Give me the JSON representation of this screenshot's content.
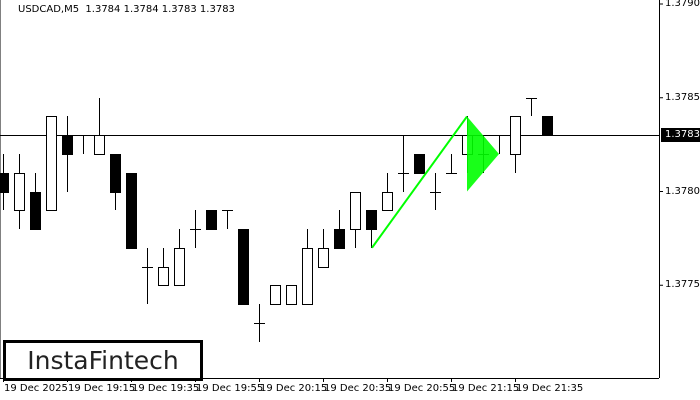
{
  "header": {
    "symbol_info": "USDCAD,M5  1.3784 1.3784 1.3783 1.3783"
  },
  "logo": "InstaFintech",
  "colors": {
    "bull_body": "#ffffff",
    "bear_body": "#000000",
    "pattern": "#00ff00",
    "current_price_bg": "#000000"
  },
  "chart_data": {
    "type": "candlestick",
    "symbol": "USDCAD",
    "timeframe": "M5",
    "ylim": [
      1.377,
      1.379
    ],
    "y_ticks": [
      "1.3790",
      "1.3785",
      "1.3780",
      "1.3775"
    ],
    "current_price": "1.3783",
    "x_ticks": [
      {
        "candle": 0,
        "label": "19 Dec 2025"
      },
      {
        "candle": 4,
        "label": "19 Dec 19:15"
      },
      {
        "candle": 8,
        "label": "19 Dec 19:35"
      },
      {
        "candle": 12,
        "label": "19 Dec 19:55"
      },
      {
        "candle": 16,
        "label": "19 Dec 20:15"
      },
      {
        "candle": 20,
        "label": "19 Dec 20:35"
      },
      {
        "candle": 24,
        "label": "19 Dec 20:55"
      },
      {
        "candle": 28,
        "label": "19 Dec 21:15"
      },
      {
        "candle": 32,
        "label": "19 Dec 21:35"
      }
    ],
    "candles": [
      [
        1.3781,
        1.3782,
        1.3779,
        1.378
      ],
      [
        1.3779,
        1.3782,
        1.3778,
        1.3781
      ],
      [
        1.378,
        1.3781,
        1.3778,
        1.3778
      ],
      [
        1.3779,
        1.3784,
        1.3779,
        1.3784
      ],
      [
        1.3783,
        1.3784,
        1.378,
        1.3782
      ],
      [
        1.3783,
        1.3783,
        1.3782,
        1.3783
      ],
      [
        1.3782,
        1.3785,
        1.3782,
        1.3783
      ],
      [
        1.3782,
        1.3782,
        1.3779,
        1.378
      ],
      [
        1.3781,
        1.3781,
        1.3777,
        1.3777
      ],
      [
        1.3776,
        1.3777,
        1.3774,
        1.3776
      ],
      [
        1.3775,
        1.3777,
        1.3775,
        1.3776
      ],
      [
        1.3775,
        1.3778,
        1.3775,
        1.3777
      ],
      [
        1.3778,
        1.3779,
        1.3777,
        1.3778
      ],
      [
        1.3779,
        1.3779,
        1.3778,
        1.3778
      ],
      [
        1.3779,
        1.3779,
        1.3778,
        1.3779
      ],
      [
        1.3778,
        1.3778,
        1.3774,
        1.3774
      ],
      [
        1.3773,
        1.3774,
        1.3772,
        1.3773
      ],
      [
        1.3774,
        1.3775,
        1.3774,
        1.3775
      ],
      [
        1.3774,
        1.3775,
        1.3774,
        1.3775
      ],
      [
        1.3774,
        1.3778,
        1.3774,
        1.3777
      ],
      [
        1.3776,
        1.3778,
        1.3776,
        1.3777
      ],
      [
        1.3778,
        1.3779,
        1.3777,
        1.3777
      ],
      [
        1.3778,
        1.378,
        1.3777,
        1.378
      ],
      [
        1.3779,
        1.3779,
        1.3777,
        1.3778
      ],
      [
        1.3779,
        1.3781,
        1.3779,
        1.378
      ],
      [
        1.3781,
        1.3783,
        1.378,
        1.3781
      ],
      [
        1.3782,
        1.3782,
        1.3781,
        1.3781
      ],
      [
        1.378,
        1.3781,
        1.3779,
        1.378
      ],
      [
        1.3781,
        1.3782,
        1.3781,
        1.3781
      ],
      [
        1.3782,
        1.3784,
        1.3781,
        1.3783
      ],
      [
        1.3782,
        1.3783,
        1.3781,
        1.3782
      ],
      [
        1.3783,
        1.3783,
        1.3782,
        1.3783
      ],
      [
        1.3782,
        1.3784,
        1.3781,
        1.3784
      ],
      [
        1.3785,
        1.3785,
        1.3784,
        1.3785
      ],
      [
        1.3784,
        1.3784,
        1.3783,
        1.3783
      ]
    ],
    "pattern": {
      "name": "bullish pennant",
      "pole": {
        "from": {
          "candle": 23,
          "price": 1.3777
        },
        "to": {
          "candle": 29,
          "price": 1.3784
        }
      },
      "triangle": [
        {
          "candle": 29,
          "price": 1.3784
        },
        {
          "candle": 31,
          "price": 1.3782
        },
        {
          "candle": 29,
          "price": 1.378
        }
      ]
    }
  }
}
